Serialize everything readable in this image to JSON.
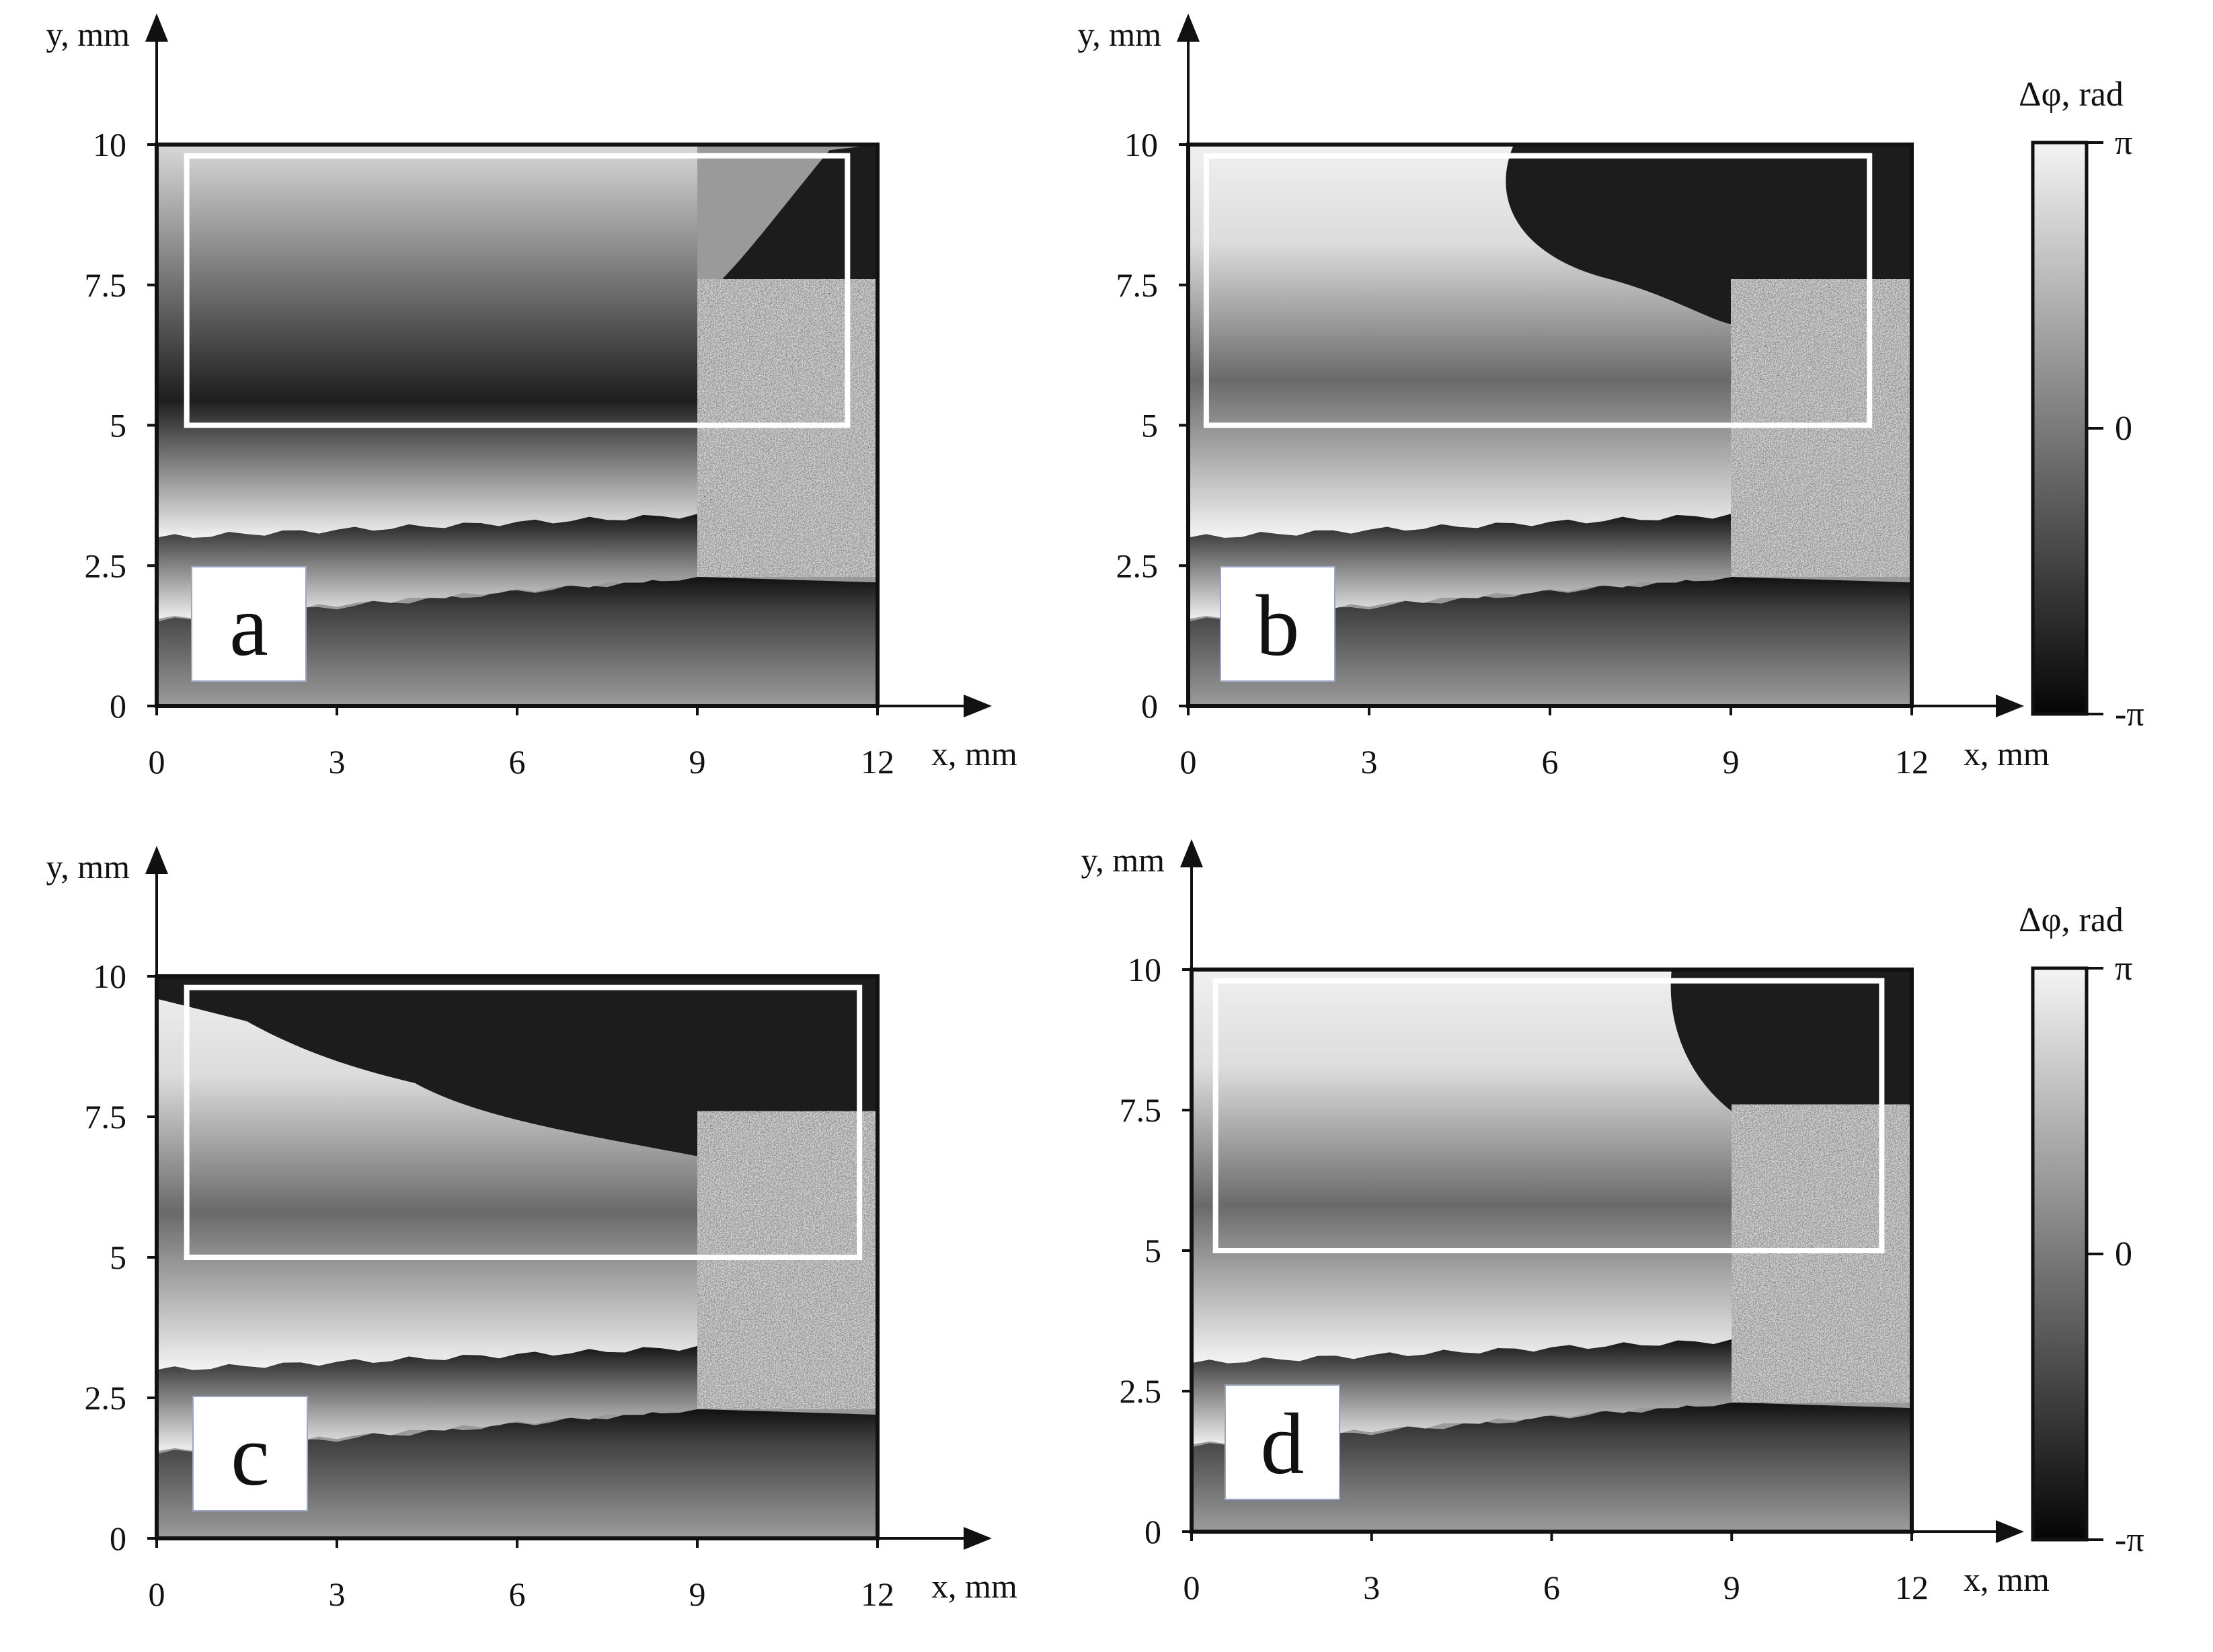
{
  "figure": {
    "panels": [
      {
        "id": "a",
        "label": "a"
      },
      {
        "id": "b",
        "label": "b"
      },
      {
        "id": "c",
        "label": "c"
      },
      {
        "id": "d",
        "label": "d"
      }
    ],
    "colorbars": [
      {
        "label": "Δφ, rad",
        "ticks": [
          "π",
          "0",
          "-π"
        ]
      },
      {
        "label": "Δφ, rad",
        "ticks": [
          "π",
          "0",
          "-π"
        ]
      }
    ]
  },
  "chart_data": [
    {
      "type": "heatmap",
      "panel": "a",
      "xlabel": "x, mm",
      "ylabel": "y, mm",
      "xticks": [
        "0",
        "3",
        "6",
        "9",
        "12"
      ],
      "yticks": [
        "0",
        "2.5",
        "5",
        "7.5",
        "10"
      ],
      "xlim": [
        0,
        12
      ],
      "ylim": [
        0,
        10
      ],
      "colormap": "grayscale",
      "value_range": [
        -3.14159,
        3.14159
      ],
      "rectangle": {
        "x": [
          0.5,
          11.5
        ],
        "y": [
          5,
          9.8
        ]
      }
    },
    {
      "type": "heatmap",
      "panel": "b",
      "xlabel": "x, mm",
      "ylabel": "y, mm",
      "xticks": [
        "0",
        "3",
        "6",
        "9",
        "12"
      ],
      "yticks": [
        "0",
        "2.5",
        "5",
        "7.5",
        "10"
      ],
      "xlim": [
        0,
        12
      ],
      "ylim": [
        0,
        10
      ],
      "colormap": "grayscale",
      "value_range": [
        -3.14159,
        3.14159
      ],
      "rectangle": {
        "x": [
          0.3,
          11.3
        ],
        "y": [
          5,
          9.8
        ]
      }
    },
    {
      "type": "heatmap",
      "panel": "c",
      "xlabel": "x, mm",
      "ylabel": "y, mm",
      "xticks": [
        "0",
        "3",
        "6",
        "9",
        "12"
      ],
      "yticks": [
        "0",
        "2.5",
        "5",
        "7.5",
        "10"
      ],
      "xlim": [
        0,
        12
      ],
      "ylim": [
        0,
        10
      ],
      "colormap": "grayscale",
      "value_range": [
        -3.14159,
        3.14159
      ],
      "rectangle": {
        "x": [
          0.5,
          11.7
        ],
        "y": [
          5,
          9.8
        ]
      }
    },
    {
      "type": "heatmap",
      "panel": "d",
      "xlabel": "x, mm",
      "ylabel": "y, mm",
      "xticks": [
        "0",
        "3",
        "6",
        "9",
        "12"
      ],
      "yticks": [
        "0",
        "2.5",
        "5",
        "7.5",
        "10"
      ],
      "xlim": [
        0,
        12
      ],
      "ylim": [
        0,
        10
      ],
      "colormap": "grayscale",
      "value_range": [
        -3.14159,
        3.14159
      ],
      "rectangle": {
        "x": [
          0.4,
          11.5
        ],
        "y": [
          5,
          9.8
        ]
      }
    }
  ]
}
